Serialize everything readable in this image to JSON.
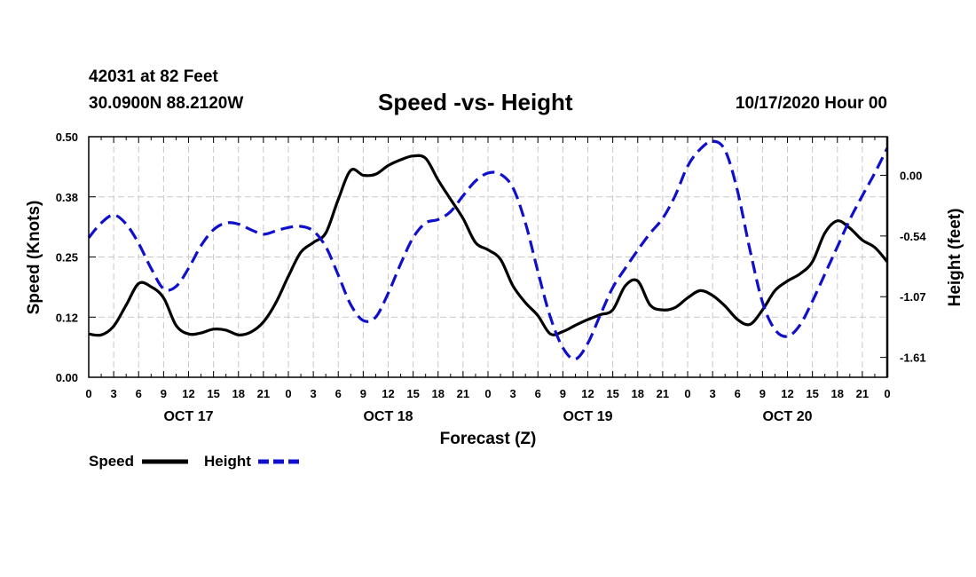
{
  "header": {
    "station": "42031 at 82 Feet",
    "coords": "30.0900N 88.2120W",
    "title": "Speed -vs- Height",
    "datetime": "10/17/2020 Hour 00"
  },
  "chart_data": {
    "type": "line",
    "title": "Speed -vs- Height",
    "xlabel": "Forecast (Z)",
    "ylabel_left": "Speed (Knots)",
    "ylabel_right": "Height (feet)",
    "x_unit": "hours from 10/17/2020 00Z",
    "xlim": [
      0,
      96
    ],
    "ylim_left": [
      0,
      0.5
    ],
    "y_ticks_left": [
      "0.00",
      "0.12",
      "0.25",
      "0.38",
      "0.50"
    ],
    "y_ticks_left_values": [
      0,
      0.125,
      0.25,
      0.375,
      0.5
    ],
    "ylim_right": [
      -1.78,
      0.34
    ],
    "y_ticks_right": [
      "0.00",
      "-0.54",
      "-1.07",
      "-1.61"
    ],
    "y_ticks_right_values": [
      0,
      -0.535,
      -1.07,
      -1.605
    ],
    "x_tick_hours": [
      0,
      3,
      6,
      9,
      12,
      15,
      18,
      21,
      24,
      27,
      30,
      33,
      36,
      39,
      42,
      45,
      48,
      51,
      54,
      57,
      60,
      63,
      66,
      69,
      72,
      75,
      78,
      81,
      84,
      87,
      90,
      93,
      96
    ],
    "x_tick_labels": [
      "0",
      "3",
      "6",
      "9",
      "12",
      "15",
      "18",
      "21",
      "0",
      "3",
      "6",
      "9",
      "12",
      "15",
      "18",
      "21",
      "0",
      "3",
      "6",
      "9",
      "12",
      "15",
      "18",
      "21",
      "0",
      "3",
      "6",
      "9",
      "12",
      "15",
      "18",
      "21",
      "0"
    ],
    "date_labels": [
      {
        "label": "OCT 17",
        "hour": 12
      },
      {
        "label": "OCT 18",
        "hour": 36
      },
      {
        "label": "OCT 19",
        "hour": 60
      },
      {
        "label": "OCT 20",
        "hour": 84
      }
    ],
    "grid": true,
    "legend": {
      "placement": "bottom-left",
      "speed_label": "Speed",
      "height_label": "Height"
    },
    "series": [
      {
        "name": "Speed",
        "axis": "left",
        "color": "#000000",
        "style": "solid",
        "x": [
          0,
          1.5,
          3,
          4.5,
          6,
          7.5,
          9,
          10.5,
          12,
          13.5,
          15,
          16.5,
          18,
          19.5,
          21,
          22.5,
          24,
          25.5,
          27,
          28.5,
          30,
          31.5,
          33,
          34.5,
          36,
          37.5,
          39,
          40.5,
          42,
          43.5,
          45,
          46.5,
          48,
          49.5,
          51,
          52.5,
          54,
          55.5,
          57,
          58.5,
          60,
          61.5,
          63,
          64.5,
          66,
          67.5,
          69,
          70.5,
          72,
          73.5,
          75,
          76.5,
          78,
          79.5,
          81,
          82.5,
          84,
          85.5,
          87,
          88.5,
          90,
          91.5,
          93,
          94.5,
          96
        ],
        "values": [
          0.09,
          0.088,
          0.106,
          0.15,
          0.195,
          0.188,
          0.165,
          0.108,
          0.09,
          0.092,
          0.1,
          0.098,
          0.088,
          0.094,
          0.115,
          0.155,
          0.21,
          0.26,
          0.28,
          0.3,
          0.37,
          0.43,
          0.42,
          0.422,
          0.44,
          0.452,
          0.46,
          0.455,
          0.41,
          0.37,
          0.33,
          0.28,
          0.265,
          0.245,
          0.19,
          0.155,
          0.128,
          0.09,
          0.095,
          0.108,
          0.12,
          0.13,
          0.14,
          0.19,
          0.2,
          0.15,
          0.14,
          0.145,
          0.165,
          0.18,
          0.17,
          0.148,
          0.12,
          0.11,
          0.14,
          0.18,
          0.2,
          0.215,
          0.24,
          0.3,
          0.325,
          0.31,
          0.285,
          0.27,
          0.24
        ]
      },
      {
        "name": "Height",
        "axis": "right",
        "color": "#1010cc",
        "style": "dashed",
        "x": [
          0,
          1.5,
          3,
          4.5,
          6,
          7.5,
          9,
          10.5,
          12,
          13.5,
          15,
          16.5,
          18,
          19.5,
          21,
          22.5,
          24,
          25.5,
          27,
          28.5,
          30,
          31.5,
          33,
          34.5,
          36,
          37.5,
          39,
          40.5,
          42,
          43.5,
          45,
          46.5,
          48,
          49.5,
          51,
          52.5,
          54,
          55.5,
          57,
          58.5,
          60,
          61.5,
          63,
          64.5,
          66,
          67.5,
          69,
          70.5,
          72,
          73.5,
          75,
          76.5,
          78,
          79.5,
          81,
          82.5,
          84,
          85.5,
          87,
          88.5,
          90,
          91.5,
          93,
          94.5,
          96
        ],
        "values": [
          -0.55,
          -0.42,
          -0.35,
          -0.43,
          -0.6,
          -0.82,
          -1.0,
          -0.98,
          -0.82,
          -0.62,
          -0.48,
          -0.42,
          -0.43,
          -0.48,
          -0.52,
          -0.49,
          -0.46,
          -0.45,
          -0.49,
          -0.63,
          -0.88,
          -1.14,
          -1.28,
          -1.25,
          -1.04,
          -0.78,
          -0.55,
          -0.42,
          -0.39,
          -0.32,
          -0.18,
          -0.05,
          0.02,
          0.01,
          -0.11,
          -0.42,
          -0.85,
          -1.25,
          -1.52,
          -1.62,
          -1.48,
          -1.23,
          -0.99,
          -0.82,
          -0.66,
          -0.51,
          -0.38,
          -0.18,
          0.08,
          0.23,
          0.3,
          0.22,
          -0.14,
          -0.66,
          -1.12,
          -1.36,
          -1.42,
          -1.32,
          -1.11,
          -0.87,
          -0.63,
          -0.39,
          -0.18,
          0.02,
          0.24
        ]
      }
    ]
  }
}
